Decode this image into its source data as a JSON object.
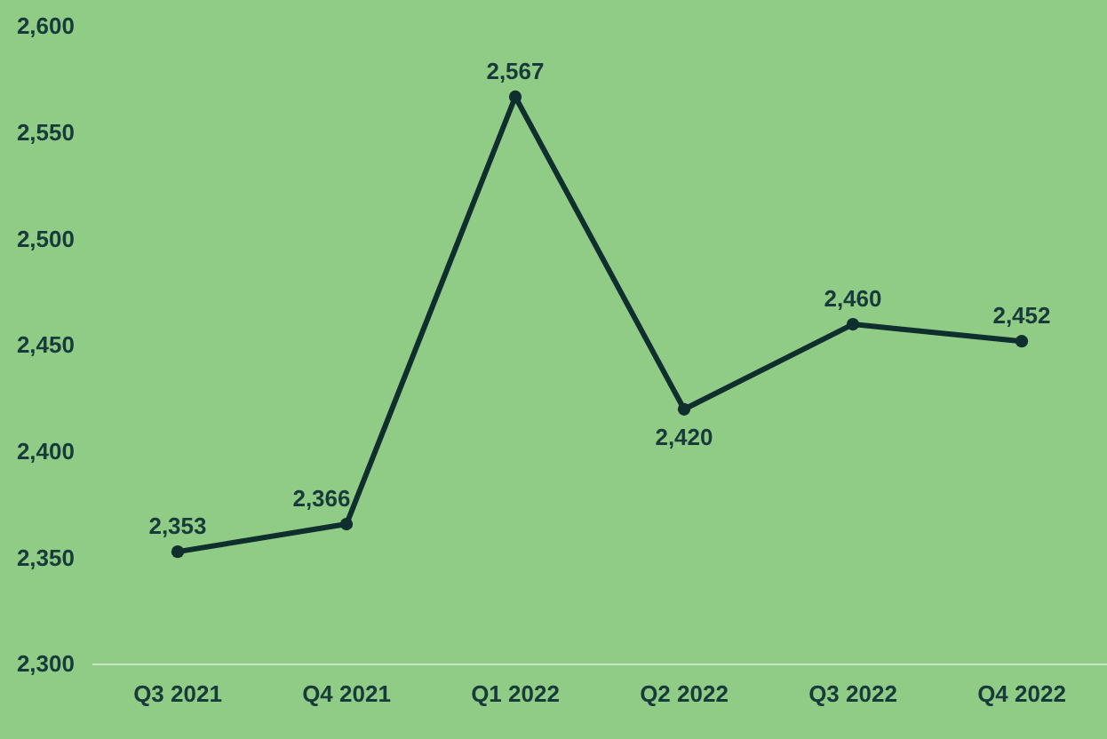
{
  "chart_data": {
    "type": "line",
    "categories": [
      "Q3 2021",
      "Q4 2021",
      "Q1 2022",
      "Q2 2022",
      "Q3 2022",
      "Q4 2022"
    ],
    "series": [
      {
        "color": "#0f2e2e",
        "values": [
          2353,
          2366,
          2567,
          2420,
          2460,
          2452
        ],
        "value_labels": [
          "2,353",
          "2,366",
          "2,567",
          "2,420",
          "2,460",
          "2,452"
        ]
      }
    ],
    "ylim": [
      2300,
      2600
    ],
    "yticks": [
      {
        "value": 2300,
        "label": "2,300"
      },
      {
        "value": 2350,
        "label": "2,350"
      },
      {
        "value": 2400,
        "label": "2,400"
      },
      {
        "value": 2450,
        "label": "2,450"
      },
      {
        "value": 2500,
        "label": "2,500"
      },
      {
        "value": 2550,
        "label": "2,550"
      },
      {
        "value": 2600,
        "label": "2,600"
      }
    ],
    "grid": false,
    "marker": "circle",
    "line_style": "solid"
  }
}
